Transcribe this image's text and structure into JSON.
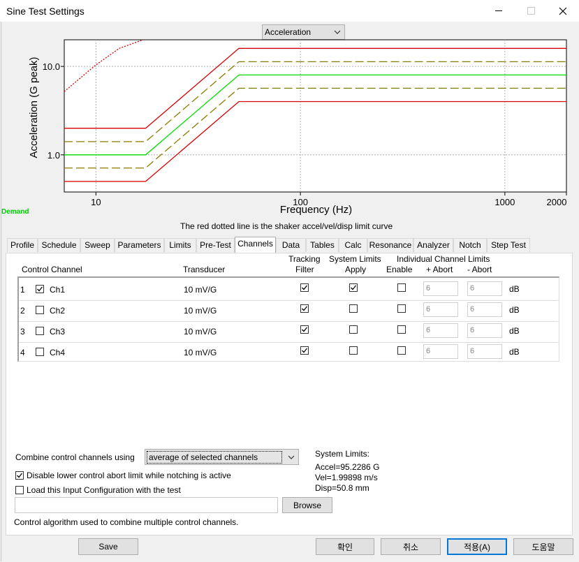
{
  "window": {
    "title": "Sine Test Settings",
    "close_glyph": "✕",
    "min_glyph": "—",
    "max_glyph": "☐"
  },
  "plot": {
    "dropdown": "Acceleration",
    "demand_label": "Demand",
    "note": "The red dotted line is the shaker accel/vel/disp limit curve"
  },
  "chart_data": {
    "type": "line",
    "xlabel": "Frequency (Hz)",
    "ylabel": "Acceleration (G peak)",
    "xscale": "log",
    "yscale": "log",
    "xlim": [
      7,
      2000
    ],
    "ylim": [
      0.38,
      20
    ],
    "xticks": [
      "10",
      "100",
      "1000",
      "2000"
    ],
    "yticks": [
      "1.0",
      "10.0"
    ],
    "grid": true,
    "series": [
      {
        "role": "abort-upper",
        "color": "#d40000",
        "style": "solid",
        "x": [
          7,
          17.5,
          50,
          2000
        ],
        "y": [
          2.0,
          2.0,
          16,
          16
        ]
      },
      {
        "role": "alarm-upper",
        "color": "#8b7a00",
        "style": "dashed",
        "x": [
          7,
          17.5,
          50,
          2000
        ],
        "y": [
          1.41,
          1.41,
          11.3,
          11.3
        ]
      },
      {
        "role": "demand",
        "color": "#00dd00",
        "style": "solid",
        "x": [
          7,
          17.5,
          50,
          2000
        ],
        "y": [
          1.0,
          1.0,
          8.0,
          8.0
        ]
      },
      {
        "role": "alarm-lower",
        "color": "#8b7a00",
        "style": "dashed",
        "x": [
          7,
          17.5,
          50,
          2000
        ],
        "y": [
          0.71,
          0.71,
          5.66,
          5.66
        ]
      },
      {
        "role": "abort-lower",
        "color": "#d40000",
        "style": "solid",
        "x": [
          7,
          17.5,
          50,
          2000
        ],
        "y": [
          0.5,
          0.5,
          4.0,
          4.0
        ]
      },
      {
        "role": "shaker-limit",
        "color": "#d40000",
        "style": "dotted",
        "x": [
          7,
          10,
          13,
          17
        ],
        "y": [
          5.2,
          10.4,
          16,
          20
        ]
      }
    ]
  },
  "tabs": [
    "Profile",
    "Schedule",
    "Sweep",
    "Parameters",
    "Limits",
    "Pre-Test",
    "Channels",
    "Data",
    "Tables",
    "Calc",
    "Resonance",
    "Analyzer",
    "Notch",
    "Step Test"
  ],
  "active_tab": "Channels",
  "table": {
    "headers": {
      "control_channel": "Control Channel",
      "transducer": "Transducer",
      "tracking_1": "Tracking",
      "tracking_2": "Filter",
      "syslimits_1": "System Limits",
      "syslimits_2": "Apply",
      "indiv_1": "Individual Channel Limits",
      "enable": "Enable",
      "plus_abort": "+ Abort",
      "minus_abort": "- Abort"
    },
    "rows": [
      {
        "num": "1",
        "name": "Ch1",
        "transducer": "10 mV/G",
        "plus": "6",
        "minus": "6",
        "unit": "dB"
      },
      {
        "num": "2",
        "name": "Ch2",
        "transducer": "10 mV/G",
        "plus": "6",
        "minus": "6",
        "unit": "dB"
      },
      {
        "num": "3",
        "name": "Ch3",
        "transducer": "10 mV/G",
        "plus": "6",
        "minus": "6",
        "unit": "dB"
      },
      {
        "num": "4",
        "name": "Ch4",
        "transducer": "10 mV/G",
        "plus": "6",
        "minus": "6",
        "unit": "dB"
      }
    ]
  },
  "bottom": {
    "combine_label": "Combine control channels using",
    "combine_value": "average of selected channels",
    "disable_lower": "Disable lower control abort limit while notching is active",
    "load_config": "Load this Input Configuration with the test",
    "browse": "Browse",
    "path_value": "",
    "hint": "Control algorithm used to combine multiple control channels.",
    "sys_title": "System Limits:",
    "accel": "Accel=95.2286 G",
    "vel": "Vel=1.99898 m/s",
    "disp": "Disp=50.8 mm"
  },
  "buttons": {
    "save": "Save",
    "ok": "확인",
    "cancel": "취소",
    "apply": "적용(A)",
    "help": "도움말"
  }
}
